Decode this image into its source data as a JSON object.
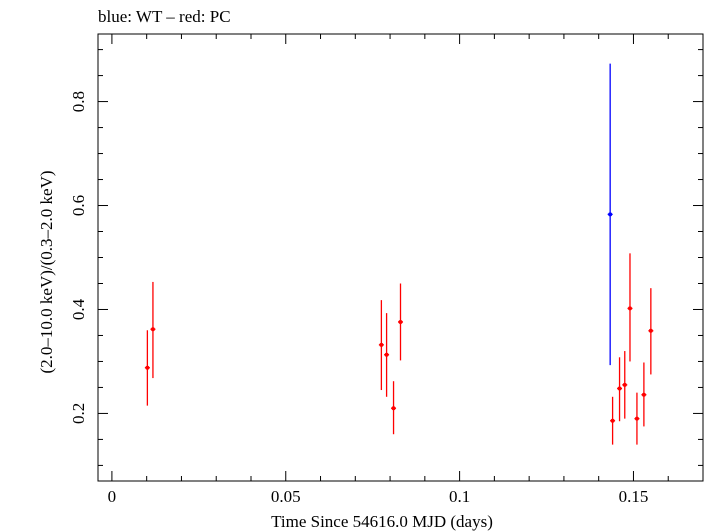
{
  "chart_data": {
    "type": "scatter",
    "title": "blue: WT – red: PC",
    "xlabel": "Time Since 54616.0 MJD (days)",
    "ylabel": "(2.0–10.0 keV)/(0.3–2.0 keV)",
    "xlim": [
      -0.004,
      0.17
    ],
    "ylim": [
      0.07,
      0.93
    ],
    "xticks": [
      {
        "value": 0,
        "label": "0"
      },
      {
        "value": 0.05,
        "label": "0.05"
      },
      {
        "value": 0.1,
        "label": "0.1"
      },
      {
        "value": 0.15,
        "label": "0.15"
      }
    ],
    "yticks": [
      {
        "value": 0.2,
        "label": "0.2"
      },
      {
        "value": 0.4,
        "label": "0.4"
      },
      {
        "value": 0.6,
        "label": "0.6"
      },
      {
        "value": 0.8,
        "label": "0.8"
      }
    ],
    "series": [
      {
        "name": "WT",
        "color": "#0000ff",
        "points": [
          {
            "x": 0.1433,
            "y": 0.583,
            "ylo": 0.293,
            "yhi": 0.873
          }
        ]
      },
      {
        "name": "PC",
        "color": "#ff0000",
        "points": [
          {
            "x": 0.0102,
            "y": 0.288,
            "ylo": 0.215,
            "yhi": 0.36
          },
          {
            "x": 0.0118,
            "y": 0.362,
            "ylo": 0.268,
            "yhi": 0.453
          },
          {
            "x": 0.0775,
            "y": 0.332,
            "ylo": 0.245,
            "yhi": 0.418
          },
          {
            "x": 0.079,
            "y": 0.313,
            "ylo": 0.232,
            "yhi": 0.393
          },
          {
            "x": 0.081,
            "y": 0.21,
            "ylo": 0.16,
            "yhi": 0.262
          },
          {
            "x": 0.083,
            "y": 0.376,
            "ylo": 0.302,
            "yhi": 0.45
          },
          {
            "x": 0.144,
            "y": 0.186,
            "ylo": 0.14,
            "yhi": 0.232
          },
          {
            "x": 0.146,
            "y": 0.248,
            "ylo": 0.185,
            "yhi": 0.308
          },
          {
            "x": 0.1475,
            "y": 0.255,
            "ylo": 0.19,
            "yhi": 0.32
          },
          {
            "x": 0.149,
            "y": 0.402,
            "ylo": 0.3,
            "yhi": 0.508
          },
          {
            "x": 0.151,
            "y": 0.19,
            "ylo": 0.14,
            "yhi": 0.24
          },
          {
            "x": 0.153,
            "y": 0.236,
            "ylo": 0.175,
            "yhi": 0.298
          },
          {
            "x": 0.155,
            "y": 0.359,
            "ylo": 0.275,
            "yhi": 0.441
          }
        ]
      }
    ]
  }
}
